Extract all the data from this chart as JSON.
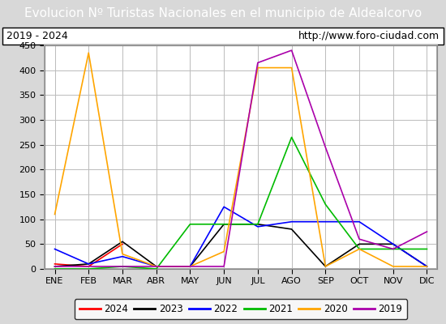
{
  "title": "Evolucion Nº Turistas Nacionales en el municipio de Aldealcorvo",
  "subtitle_left": "2019 - 2024",
  "subtitle_right": "http://www.foro-ciudad.com",
  "months": [
    "ENE",
    "FEB",
    "MAR",
    "ABR",
    "MAY",
    "JUN",
    "JUL",
    "AGO",
    "SEP",
    "OCT",
    "NOV",
    "DIC"
  ],
  "series": {
    "2024": {
      "color": "#ff0000",
      "values": [
        10,
        5,
        50,
        null,
        null,
        null,
        null,
        null,
        null,
        null,
        null,
        null
      ]
    },
    "2023": {
      "color": "#000000",
      "values": [
        5,
        10,
        55,
        5,
        5,
        90,
        90,
        80,
        5,
        50,
        50,
        5
      ]
    },
    "2022": {
      "color": "#0000ff",
      "values": [
        40,
        10,
        25,
        5,
        5,
        125,
        85,
        95,
        95,
        95,
        50,
        5
      ]
    },
    "2021": {
      "color": "#00bb00",
      "values": [
        0,
        0,
        5,
        0,
        90,
        90,
        90,
        265,
        130,
        40,
        40,
        40
      ]
    },
    "2020": {
      "color": "#ffa500",
      "values": [
        110,
        435,
        30,
        5,
        5,
        35,
        405,
        405,
        5,
        40,
        5,
        5
      ]
    },
    "2019": {
      "color": "#aa00aa",
      "values": [
        5,
        5,
        5,
        5,
        5,
        5,
        415,
        440,
        245,
        60,
        40,
        75
      ]
    }
  },
  "ylim": [
    0,
    450
  ],
  "yticks": [
    0,
    50,
    100,
    150,
    200,
    250,
    300,
    350,
    400,
    450
  ],
  "title_bg_color": "#4472c4",
  "title_color": "#ffffff",
  "title_fontsize": 11,
  "outer_bg_color": "#d8d8d8",
  "plot_bg_color": "#e8e8e8",
  "inner_plot_bg": "#ffffff",
  "grid_color": "#bbbbbb",
  "legend_order": [
    "2024",
    "2023",
    "2022",
    "2021",
    "2020",
    "2019"
  ],
  "subtitle_box_color": "#ffffff",
  "subtitle_fontsize": 9
}
